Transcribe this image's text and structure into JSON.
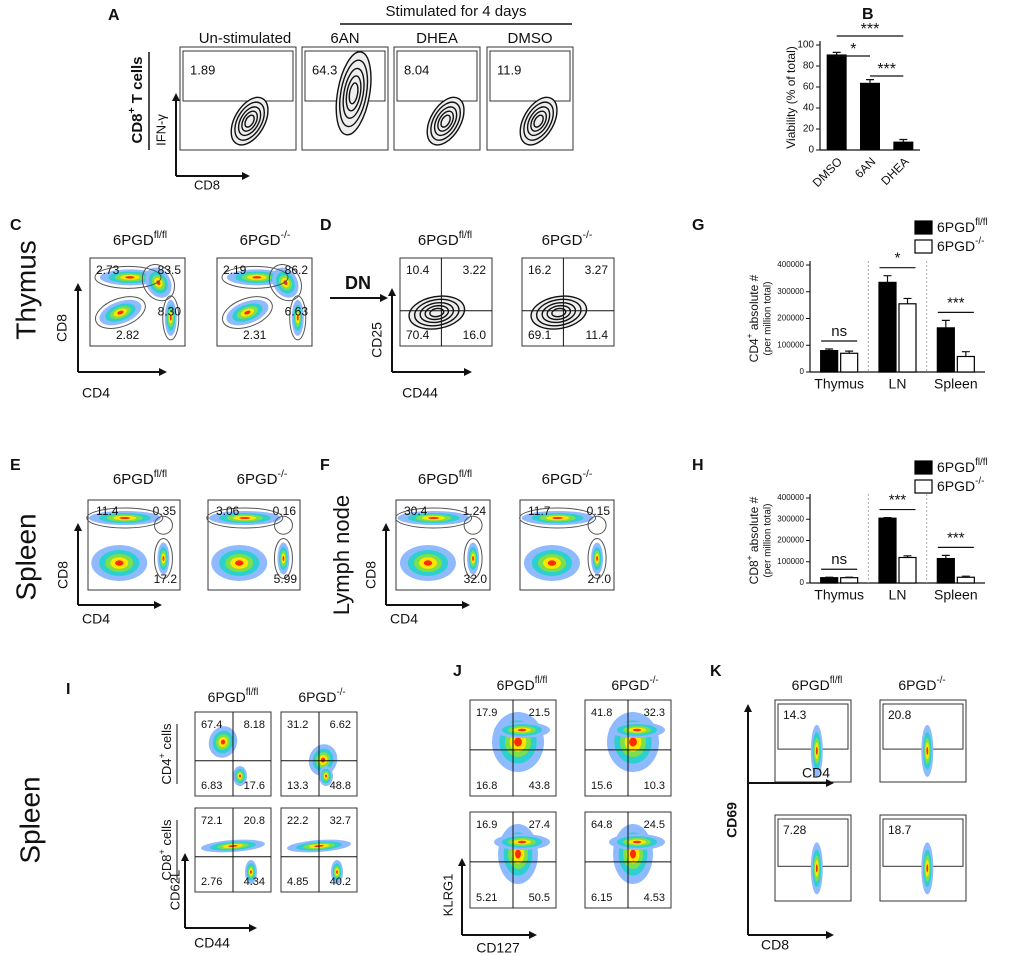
{
  "figure": {
    "genotypes": [
      {
        "base": "6PGD",
        "sup": "fl/fl"
      },
      {
        "base": "6PGD",
        "sup": "-/-"
      }
    ],
    "A": {
      "letter": "A",
      "header": "Stimulated for 4 days",
      "cell_label": {
        "base": "CD8",
        "sup": "+",
        "rest": " T cells"
      },
      "y_axis": "IFN-γ",
      "x_axis": "CD8",
      "plots": [
        {
          "title": "Un-stimulated",
          "gate": "1.89"
        },
        {
          "title": "6AN",
          "gate": "64.3"
        },
        {
          "title": "DHEA",
          "gate": "8.04"
        },
        {
          "title": "DMSO",
          "gate": "11.9"
        }
      ]
    },
    "C": {
      "letter": "C",
      "tissue": "Thymus",
      "y_axis": "CD8",
      "x_axis": "CD4",
      "plots": [
        [
          "2.73",
          "83.5",
          "2.82",
          "8.30"
        ],
        [
          "2.19",
          "86.2",
          "2.31",
          "6.63"
        ]
      ]
    },
    "D": {
      "letter": "D",
      "arrow_label": "DN",
      "y_axis": "CD25",
      "x_axis": "CD44",
      "plots": [
        [
          "10.4",
          "3.22",
          "70.4",
          "16.0"
        ],
        [
          "16.2",
          "3.27",
          "69.1",
          "11.4"
        ]
      ]
    },
    "E": {
      "letter": "E",
      "tissue": "Spleen",
      "y_axis": "CD8",
      "x_axis": "CD4",
      "plots": [
        [
          "11.4",
          "0.35",
          "17.2"
        ],
        [
          "3.06",
          "0.16",
          "5.99"
        ]
      ]
    },
    "F": {
      "letter": "F",
      "tissue": "Lymph node",
      "y_axis": "CD8",
      "x_axis": "CD4",
      "plots": [
        [
          "30.4",
          "1.24",
          "32.0"
        ],
        [
          "11.7",
          "0.15",
          "27.0"
        ]
      ]
    },
    "I": {
      "letter": "I",
      "tissue": "Spleen",
      "rows": [
        {
          "base": "CD4",
          "sup": "+",
          "rest": " cells"
        },
        {
          "base": "CD8",
          "sup": "+",
          "rest": " cells"
        }
      ],
      "y_axis": "CD62L",
      "x_axis": "CD44",
      "plots": [
        [
          [
            "67.4",
            "8.18",
            "6.83",
            "17.6"
          ],
          [
            "31.2",
            "6.62",
            "13.3",
            "48.8"
          ]
        ],
        [
          [
            "72.1",
            "20.8",
            "2.76",
            "4.34"
          ],
          [
            "22.2",
            "32.7",
            "4.85",
            "40.2"
          ]
        ]
      ]
    },
    "J": {
      "letter": "J",
      "y_axis": "KLRG1",
      "x_axis": "CD127",
      "plots": [
        [
          [
            "17.9",
            "21.5",
            "16.8",
            "43.8"
          ],
          [
            "41.8",
            "32.3",
            "15.6",
            "10.3"
          ]
        ],
        [
          [
            "16.9",
            "27.4",
            "5.21",
            "50.5"
          ],
          [
            "64.8",
            "24.5",
            "6.15",
            "4.53"
          ]
        ]
      ]
    },
    "K": {
      "letter": "K",
      "y_axis": "CD69",
      "x_axes": [
        "CD4",
        "CD8"
      ],
      "plots": [
        [
          "14.3",
          "20.8"
        ],
        [
          "7.28",
          "18.7"
        ]
      ]
    }
  },
  "chart_data": [
    {
      "type": "bar",
      "letter": "B",
      "ylabel": "Viability (% of total)",
      "categories": [
        "DMSO",
        "6AN",
        "DHEA"
      ],
      "values": [
        91,
        64,
        8
      ],
      "errors": [
        2,
        3,
        2
      ],
      "color": "#000000",
      "ylim": [
        0,
        100
      ],
      "yticks": [
        0,
        20,
        40,
        60,
        80,
        100
      ],
      "annotations": [
        "***",
        "*",
        "***"
      ]
    },
    {
      "type": "grouped_bar",
      "letter": "G",
      "ylabel": {
        "base": "CD4",
        "sup": "+",
        "rest": " absolute #"
      },
      "ylabel2": "(per million total)",
      "categories": [
        "Thymus",
        "LN",
        "Spleen"
      ],
      "series": [
        {
          "name": "6PGD",
          "name_sup": "fl/fl",
          "color": "#000000",
          "values": [
            80000,
            335000,
            165000
          ],
          "errors": [
            6000,
            25000,
            28000
          ]
        },
        {
          "name": "6PGD",
          "name_sup": "-/-",
          "color": "#ffffff",
          "values": [
            70000,
            255000,
            58000
          ],
          "errors": [
            8000,
            20000,
            18000
          ]
        }
      ],
      "ylim": [
        0,
        400000
      ],
      "yticks": [
        0,
        100000,
        200000,
        300000,
        400000
      ],
      "annotations": [
        "ns",
        "*",
        "***"
      ]
    },
    {
      "type": "grouped_bar",
      "letter": "H",
      "ylabel": {
        "base": "CD8",
        "sup": "+",
        "rest": " absolute #"
      },
      "ylabel2": "(per million total)",
      "categories": [
        "Thymus",
        "LN",
        "Spleen"
      ],
      "series": [
        {
          "name": "6PGD",
          "name_sup": "fl/fl",
          "color": "#000000",
          "values": [
            25000,
            305000,
            115000
          ],
          "errors": [
            2000,
            3000,
            15000
          ]
        },
        {
          "name": "6PGD",
          "name_sup": "-/-",
          "color": "#ffffff",
          "values": [
            25000,
            120000,
            27000
          ],
          "errors": [
            2000,
            8000,
            5000
          ]
        }
      ],
      "ylim": [
        0,
        400000
      ],
      "yticks": [
        0,
        100000,
        200000,
        300000,
        400000
      ],
      "annotations": [
        "ns",
        "***",
        "***"
      ]
    }
  ]
}
